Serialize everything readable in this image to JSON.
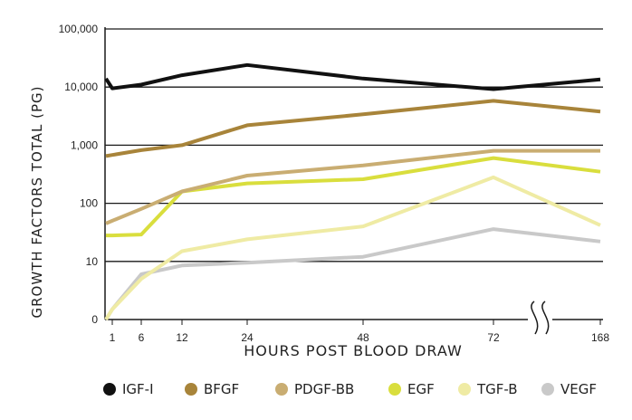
{
  "chart_data": {
    "type": "line",
    "ylabel": "GROWTH FACTORS TOTAL (PG)",
    "xlabel": "HOURS POST BLOOD DRAW",
    "yscale": "log",
    "ytick_labels": [
      "0",
      "10",
      "100",
      "1,000",
      "10,000",
      "100,000"
    ],
    "xtick_labels": [
      "1",
      "6",
      "12",
      "24",
      "48",
      "72",
      "168"
    ],
    "axis_break": "between 72 and 168",
    "grid": "horizontal",
    "legend_position": "bottom",
    "x": [
      0,
      1,
      6,
      12,
      24,
      48,
      72,
      168
    ],
    "series": [
      {
        "name": "IGF-I",
        "color": "#111111",
        "values": [
          14000,
          9500,
          11000,
          16000,
          24000,
          14000,
          9200,
          13500
        ]
      },
      {
        "name": "BFGF",
        "color": "#a8843a",
        "values": [
          650,
          680,
          820,
          1000,
          2200,
          3400,
          5800,
          3800
        ]
      },
      {
        "name": "PDGF-BB",
        "color": "#c9ad72",
        "values": [
          45,
          50,
          80,
          160,
          300,
          450,
          800,
          800
        ]
      },
      {
        "name": "EGF",
        "color": "#d9de3d",
        "values": [
          28,
          28,
          29,
          160,
          220,
          260,
          600,
          350
        ]
      },
      {
        "name": "TGF-B",
        "color": "#efeba4",
        "values": [
          1,
          1.5,
          5,
          15,
          24,
          40,
          280,
          42
        ]
      },
      {
        "name": "VEGF",
        "color": "#c9c9c9",
        "values": [
          1,
          1.5,
          6,
          8.5,
          9.5,
          12,
          36,
          22
        ]
      }
    ]
  }
}
